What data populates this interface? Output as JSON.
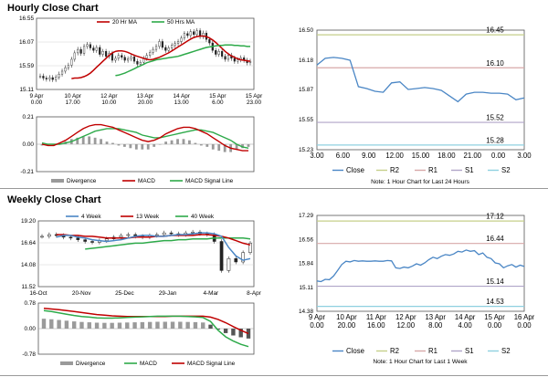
{
  "sections": {
    "hourly_title": "Hourly Close Chart",
    "weekly_title": "Weekly Close Chart"
  },
  "colors": {
    "close": "#4a86c5",
    "ma_short": "#c00000",
    "ma_long": "#2eaa4a",
    "r2": "#c5cf8a",
    "r1": "#d7a8a8",
    "s1": "#b0a5c8",
    "s2": "#8fd0e0",
    "divergence": "#9a9a9a",
    "macd": "#c00000",
    "signal": "#2eaa4a",
    "price_line": "#333333"
  },
  "chart_data": [
    {
      "id": "hourly-price",
      "type": "line",
      "x_ticks": [
        [
          "9 Apr",
          "0.00"
        ],
        [
          "10 Apr",
          "17.00"
        ],
        [
          "12 Apr",
          "10.00"
        ],
        [
          "13 Apr",
          "20.00"
        ],
        [
          "14 Apr",
          "13.00"
        ],
        [
          "15 Apr",
          "6.00"
        ],
        [
          "15 Apr",
          "23.00"
        ]
      ],
      "y_ticks": [
        "16.55",
        "16.07",
        "15.59",
        "15.11"
      ],
      "ylim": [
        15.11,
        16.55
      ],
      "legend": [
        "20 Hr MA",
        "50 Hrs MA"
      ],
      "price": [
        15.38,
        15.34,
        15.32,
        15.35,
        15.31,
        15.36,
        15.42,
        15.48,
        15.55,
        15.6,
        15.72,
        15.85,
        15.92,
        15.84,
        15.98,
        16.02,
        15.95,
        15.9,
        15.96,
        15.82,
        15.88,
        15.78,
        15.84,
        15.7,
        15.74,
        15.8,
        15.76,
        15.7,
        15.73,
        15.77,
        15.68,
        15.62,
        15.66,
        15.74,
        15.8,
        15.86,
        15.92,
        15.98,
        16.08,
        15.96,
        15.9,
        15.95,
        16.0,
        16.04,
        16.08,
        16.15,
        16.24,
        16.2,
        16.28,
        16.22,
        16.3,
        16.18,
        16.25,
        16.12,
        16.05,
        15.9,
        15.82,
        15.88,
        15.78,
        15.72,
        15.8,
        15.74,
        15.68,
        15.71,
        15.75,
        15.7,
        15.65,
        15.68
      ],
      "ma20": [
        15.33,
        15.34,
        15.34,
        15.35,
        15.37,
        15.4,
        15.44,
        15.5,
        15.56,
        15.62,
        15.68,
        15.74,
        15.8,
        15.85,
        15.88,
        15.89,
        15.89,
        15.88,
        15.86,
        15.83,
        15.8,
        15.78,
        15.76,
        15.74,
        15.72,
        15.71,
        15.72,
        15.74,
        15.76,
        15.79,
        15.82,
        15.85,
        15.89,
        15.93,
        15.97,
        16.01,
        16.05,
        16.09,
        16.13,
        16.16,
        16.18,
        16.19,
        16.19,
        16.18,
        16.15,
        16.11,
        16.06,
        16.0,
        15.94,
        15.88,
        15.83,
        15.79,
        15.76,
        15.73,
        15.71,
        15.7,
        15.69,
        15.68
      ],
      "ma50": [
        15.39,
        15.4,
        15.42,
        15.44,
        15.47,
        15.5,
        15.53,
        15.56,
        15.59,
        15.62,
        15.65,
        15.67,
        15.69,
        15.71,
        15.72,
        15.73,
        15.74,
        15.75,
        15.76,
        15.77,
        15.78,
        15.8,
        15.82,
        15.84,
        15.86,
        15.88,
        15.9,
        15.92,
        15.94,
        15.96,
        15.97,
        15.98,
        15.99,
        16.0,
        16.0,
        16.01,
        16.01,
        16.01,
        16.0,
        16.0,
        15.99,
        15.99,
        15.98,
        15.98
      ]
    },
    {
      "id": "hourly-macd",
      "type": "bar",
      "y_ticks": [
        "0.21",
        "0.00",
        "-0.21"
      ],
      "ylim": [
        -0.21,
        0.21
      ],
      "legend": [
        "Divergence",
        "MACD",
        "MACD Signal Line"
      ],
      "macd": [
        0.0,
        -0.01,
        -0.01,
        0.01,
        0.03,
        0.06,
        0.09,
        0.12,
        0.14,
        0.15,
        0.15,
        0.14,
        0.13,
        0.11,
        0.09,
        0.07,
        0.05,
        0.03,
        0.02,
        0.03,
        0.05,
        0.08,
        0.1,
        0.12,
        0.13,
        0.13,
        0.12,
        0.1,
        0.08,
        0.05,
        0.02,
        -0.01,
        -0.03,
        -0.04,
        -0.05,
        -0.05
      ],
      "signal": [
        0.01,
        0.0,
        0.0,
        0.0,
        0.01,
        0.02,
        0.04,
        0.06,
        0.08,
        0.1,
        0.11,
        0.12,
        0.12,
        0.12,
        0.11,
        0.1,
        0.09,
        0.07,
        0.06,
        0.05,
        0.05,
        0.06,
        0.07,
        0.08,
        0.09,
        0.1,
        0.11,
        0.11,
        0.1,
        0.09,
        0.07,
        0.05,
        0.03,
        0.0,
        -0.02,
        -0.03
      ]
    },
    {
      "id": "hourly-levels",
      "type": "line",
      "note": "Note: 1 Hour Chart for Last 24 Hours",
      "x_ticks": [
        "3.00",
        "6.00",
        "9.00",
        "12.00",
        "15.00",
        "18.00",
        "21.00",
        "0.00",
        "3.00"
      ],
      "y_ticks": [
        "16.50",
        "16.18",
        "15.87",
        "15.55",
        "15.23"
      ],
      "ylim": [
        15.23,
        16.5
      ],
      "legend": [
        "Close",
        "R2",
        "R1",
        "S1",
        "S2"
      ],
      "levels": {
        "R2": 16.45,
        "R1": 16.1,
        "S1": 15.52,
        "S2": 15.28
      },
      "level_labels": [
        "16.45",
        "16.10",
        "15.52",
        "15.28"
      ],
      "close": [
        16.13,
        16.2,
        16.21,
        16.2,
        16.18,
        15.9,
        15.88,
        15.85,
        15.84,
        15.94,
        15.95,
        15.87,
        15.88,
        15.89,
        15.88,
        15.86,
        15.8,
        15.74,
        15.82,
        15.84,
        15.84,
        15.83,
        15.83,
        15.82,
        15.76,
        15.78
      ]
    },
    {
      "id": "weekly-price",
      "type": "line",
      "x_ticks": [
        "16-Oct",
        "20-Nov",
        "25-Dec",
        "29-Jan",
        "4-Mar",
        "8-Apr"
      ],
      "y_ticks": [
        "19.20",
        "16.64",
        "14.08",
        "11.52"
      ],
      "ylim": [
        11.52,
        19.2
      ],
      "legend": [
        "4 Week",
        "13 Week",
        "40 Week"
      ],
      "price": [
        17.4,
        17.6,
        17.5,
        17.3,
        17.2,
        17.0,
        16.8,
        16.7,
        16.9,
        17.1,
        17.3,
        17.5,
        17.6,
        17.4,
        17.3,
        17.5,
        17.6,
        17.8,
        17.7,
        17.6,
        17.8,
        17.9,
        17.7,
        17.6,
        16.8,
        13.4,
        14.8,
        14.4,
        15.5,
        16.6
      ],
      "wk4": [
        17.3,
        17.5,
        17.5,
        17.3,
        17.2,
        17.0,
        16.9,
        16.8,
        16.9,
        17.0,
        17.2,
        17.4,
        17.5,
        17.5,
        17.4,
        17.4,
        17.5,
        17.6,
        17.6,
        17.7,
        17.8,
        17.8,
        17.7,
        17.4,
        16.1,
        15.1,
        14.6,
        14.8
      ],
      "wk13": [
        17.6,
        17.6,
        17.5,
        17.5,
        17.4,
        17.4,
        17.3,
        17.2,
        17.2,
        17.2,
        17.2,
        17.3,
        17.3,
        17.3,
        17.4,
        17.4,
        17.5,
        17.5,
        17.5,
        17.5,
        17.6,
        17.6,
        17.5,
        17.4,
        17.2,
        16.9,
        16.6,
        16.4
      ],
      "wk40": [
        15.9,
        16.0,
        16.1,
        16.2,
        16.3,
        16.4,
        16.5,
        16.6,
        16.6,
        16.7,
        16.8,
        16.9,
        16.9,
        17.0,
        17.0,
        17.1,
        17.1,
        17.1,
        17.2,
        17.2,
        17.2,
        17.2,
        17.2,
        17.1
      ]
    },
    {
      "id": "weekly-macd",
      "type": "bar",
      "y_ticks": [
        "0.78",
        "0.00",
        "-0.78"
      ],
      "ylim": [
        -0.78,
        0.78
      ],
      "legend": [
        "Divergence",
        "MACD",
        "MACD Signal Line"
      ],
      "macd": [
        0.55,
        0.52,
        0.48,
        0.44,
        0.4,
        0.37,
        0.35,
        0.33,
        0.32,
        0.32,
        0.33,
        0.34,
        0.35,
        0.36,
        0.37,
        0.38,
        0.38,
        0.38,
        0.38,
        0.37,
        0.36,
        0.34,
        0.22,
        -0.05,
        -0.25,
        -0.38,
        -0.48,
        -0.55
      ],
      "signal": [
        0.62,
        0.6,
        0.58,
        0.55,
        0.52,
        0.49,
        0.46,
        0.43,
        0.41,
        0.39,
        0.38,
        0.37,
        0.37,
        0.37,
        0.37,
        0.37,
        0.37,
        0.38,
        0.38,
        0.38,
        0.38,
        0.38,
        0.35,
        0.28,
        0.18,
        0.06,
        -0.05,
        -0.15
      ]
    },
    {
      "id": "weekly-levels",
      "type": "line",
      "note": "Note: 1 Hour Chart for Last 1 Week",
      "x_ticks": [
        [
          "9 Apr",
          "0.00"
        ],
        [
          "10 Apr",
          "20.00"
        ],
        [
          "11 Apr",
          "16.00"
        ],
        [
          "12 Apr",
          "12.00"
        ],
        [
          "13 Apr",
          "8.00"
        ],
        [
          "14 Apr",
          "4.00"
        ],
        [
          "15 Apr",
          "0.00"
        ],
        [
          "16 Apr",
          "0.00"
        ]
      ],
      "y_ticks": [
        "17.29",
        "16.56",
        "15.84",
        "15.11",
        "14.38"
      ],
      "ylim": [
        14.38,
        17.29
      ],
      "legend": [
        "Close",
        "R2",
        "R1",
        "S1",
        "S2"
      ],
      "levels": {
        "R2": 17.12,
        "R1": 16.44,
        "S1": 15.14,
        "S2": 14.53
      },
      "level_labels": [
        "17.12",
        "16.44",
        "15.14",
        "14.53"
      ],
      "close": [
        15.3,
        15.28,
        15.35,
        15.34,
        15.45,
        15.62,
        15.8,
        15.9,
        15.88,
        15.92,
        15.9,
        15.91,
        15.9,
        15.9,
        15.91,
        15.9,
        15.9,
        15.92,
        15.91,
        15.7,
        15.68,
        15.72,
        15.7,
        15.75,
        15.82,
        15.78,
        15.85,
        15.95,
        16.02,
        15.98,
        16.05,
        16.1,
        16.08,
        16.12,
        16.2,
        16.18,
        16.24,
        16.2,
        16.22,
        16.1,
        16.15,
        16.02,
        15.98,
        15.85,
        15.82,
        15.7,
        15.76,
        15.8,
        15.72,
        15.78,
        15.74
      ]
    }
  ]
}
